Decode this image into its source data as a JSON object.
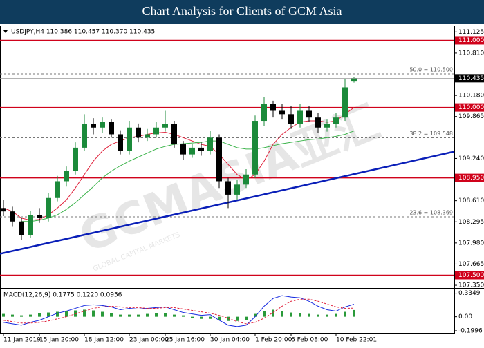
{
  "chart_data": {
    "type": "candlestick",
    "title": "Chart Analysis for Clients of GCM Asia",
    "header": "USDJPY,H4  110.386 110.457 110.370 110.435",
    "watermark": "GCMASIA亚汇",
    "watermark_sub": "GLOBAL CAPITAL MARKETS",
    "categories": [
      "11 Jan 2019",
      null,
      null,
      null,
      "15 Jan 20:00",
      null,
      null,
      null,
      null,
      "18 Jan 12:00",
      null,
      null,
      null,
      null,
      "23 Jan 00:00",
      null,
      null,
      null,
      "25 Jan 16:00",
      null,
      null,
      null,
      null,
      "30 Jan 04:00",
      null,
      null,
      null,
      null,
      "1 Feb 20:00",
      null,
      null,
      null,
      "6 Feb 08:00",
      null,
      null,
      null,
      null,
      "10 Feb 22:01",
      null,
      null
    ],
    "ohlc": [
      [
        108.5,
        108.62,
        108.38,
        108.45
      ],
      [
        108.45,
        108.52,
        108.22,
        108.3
      ],
      [
        108.3,
        108.36,
        108.02,
        108.1
      ],
      [
        108.1,
        108.46,
        108.06,
        108.4
      ],
      [
        108.4,
        108.5,
        108.28,
        108.35
      ],
      [
        108.35,
        108.72,
        108.3,
        108.65
      ],
      [
        108.65,
        108.98,
        108.6,
        108.9
      ],
      [
        108.9,
        109.12,
        108.82,
        109.05
      ],
      [
        109.05,
        109.48,
        109.0,
        109.4
      ],
      [
        109.4,
        109.9,
        109.35,
        109.75
      ],
      [
        109.75,
        109.84,
        109.6,
        109.7
      ],
      [
        109.7,
        109.85,
        109.62,
        109.78
      ],
      [
        109.78,
        109.82,
        109.55,
        109.6
      ],
      [
        109.6,
        109.66,
        109.3,
        109.35
      ],
      [
        109.35,
        109.8,
        109.3,
        109.7
      ],
      [
        109.7,
        109.76,
        109.48,
        109.55
      ],
      [
        109.55,
        109.68,
        109.5,
        109.6
      ],
      [
        109.6,
        109.78,
        109.55,
        109.7
      ],
      [
        109.7,
        109.95,
        109.64,
        109.75
      ],
      [
        109.75,
        109.8,
        109.4,
        109.45
      ],
      [
        109.45,
        109.5,
        109.22,
        109.3
      ],
      [
        109.3,
        109.46,
        109.25,
        109.4
      ],
      [
        109.4,
        109.48,
        109.28,
        109.35
      ],
      [
        109.35,
        109.65,
        109.3,
        109.55
      ],
      [
        109.55,
        109.6,
        108.8,
        108.9
      ],
      [
        108.9,
        108.95,
        108.5,
        108.7
      ],
      [
        108.7,
        108.92,
        108.62,
        108.85
      ],
      [
        108.85,
        109.08,
        108.8,
        109.0
      ],
      [
        109.0,
        109.88,
        108.95,
        109.8
      ],
      [
        109.8,
        110.15,
        109.72,
        110.05
      ],
      [
        110.05,
        110.1,
        109.85,
        109.95
      ],
      [
        109.95,
        110.05,
        109.82,
        109.9
      ],
      [
        109.9,
        110.02,
        109.68,
        109.75
      ],
      [
        109.75,
        110.05,
        109.7,
        109.95
      ],
      [
        109.95,
        110.02,
        109.78,
        109.85
      ],
      [
        109.85,
        109.92,
        109.62,
        109.7
      ],
      [
        109.7,
        109.82,
        109.64,
        109.75
      ],
      [
        109.75,
        109.92,
        109.7,
        109.85
      ],
      [
        109.85,
        110.42,
        109.8,
        110.3
      ],
      [
        110.386,
        110.457,
        110.37,
        110.435
      ]
    ],
    "up_color": "#1b8a3a",
    "down_color": "#000000",
    "ma": [
      {
        "color": "#e0203a",
        "values": [
          108.5,
          108.45,
          108.35,
          108.32,
          108.33,
          108.4,
          108.5,
          108.62,
          108.8,
          109.0,
          109.2,
          109.35,
          109.45,
          109.5,
          109.55,
          109.57,
          109.6,
          109.62,
          109.63,
          109.6,
          109.55,
          109.5,
          109.45,
          109.42,
          109.3,
          109.15,
          109.0,
          108.92,
          109.0,
          109.2,
          109.45,
          109.6,
          109.7,
          109.78,
          109.8,
          109.8,
          109.78,
          109.8,
          109.9,
          110.0
        ]
      },
      {
        "color": "#3cb44b",
        "values": [
          null,
          null,
          108.3,
          108.3,
          108.32,
          108.35,
          108.4,
          108.48,
          108.58,
          108.7,
          108.82,
          108.95,
          109.05,
          109.13,
          109.2,
          109.26,
          109.32,
          109.38,
          109.42,
          109.45,
          109.46,
          109.47,
          109.48,
          109.5,
          109.5,
          109.45,
          109.4,
          109.38,
          109.38,
          109.4,
          109.43,
          109.46,
          109.48,
          109.5,
          109.52,
          109.53,
          109.55,
          109.57,
          109.6,
          109.65
        ]
      }
    ],
    "trendline": {
      "color": "#0a1fb8",
      "values": [
        107.83,
        109.006
      ]
    },
    "ylim": [
      107.33,
      111.19
    ],
    "yticks": [
      111.125,
      {
        "value": 110.81,
        "label": "110.810"
      },
      {
        "value": 110.18,
        "label": "110.180"
      },
      109.865,
      {
        "value": 109.24,
        "label": "109.240"
      },
      {
        "value": 108.61,
        "label": "108.610"
      },
      108.295,
      {
        "value": 107.98,
        "label": "107.980"
      },
      107.665,
      {
        "value": 107.35,
        "label": "107.350"
      }
    ],
    "levels": [
      {
        "value": 111.0,
        "label": "111.000"
      },
      {
        "value": 110.0,
        "label": "110.000"
      },
      {
        "value": 108.95,
        "label": "108.950"
      },
      {
        "value": 107.5,
        "label": "107.500"
      }
    ],
    "level_color": "#d0021b",
    "fibo": [
      {
        "value": 110.5,
        "label": "50.0 = 110.500"
      },
      {
        "value": 109.548,
        "label": "38.2 = 109.548"
      },
      {
        "value": 108.369,
        "label": "23.6 = 108.369"
      }
    ],
    "current": {
      "value": 110.435,
      "label": "110.435"
    },
    "macd": {
      "header": "MACD(12,26,9) 0.1775 0.1220 0.0956",
      "ylim": [
        -0.2,
        0.38
      ],
      "yticks": [
        0.3349,
        {
          "value": 0,
          "label": "0.00"
        },
        -0.1996
      ],
      "series": [
        {
          "color": "#1428e0",
          "values": [
            -0.08,
            -0.1,
            -0.12,
            -0.08,
            -0.05,
            0.0,
            0.05,
            0.08,
            0.12,
            0.16,
            0.17,
            0.16,
            0.14,
            0.1,
            0.12,
            0.11,
            0.12,
            0.13,
            0.14,
            0.1,
            0.06,
            0.04,
            0.02,
            0.03,
            -0.05,
            -0.12,
            -0.14,
            -0.12,
            0.0,
            0.15,
            0.26,
            0.3,
            0.28,
            0.27,
            0.22,
            0.15,
            0.1,
            0.08,
            0.14,
            0.1775
          ]
        },
        {
          "color": "#e0203a",
          "values": [
            -0.05,
            -0.07,
            -0.09,
            -0.09,
            -0.08,
            -0.06,
            -0.03,
            0.0,
            0.04,
            0.08,
            0.12,
            0.14,
            0.15,
            0.14,
            0.13,
            0.13,
            0.12,
            0.12,
            0.13,
            0.13,
            0.11,
            0.09,
            0.07,
            0.05,
            0.02,
            -0.02,
            -0.07,
            -0.1,
            -0.08,
            -0.02,
            0.06,
            0.15,
            0.22,
            0.25,
            0.25,
            0.22,
            0.18,
            0.14,
            0.12,
            0.122
          ]
        }
      ],
      "histogram": {
        "color": "#2a9a3a",
        "values": [
          0.04,
          0.03,
          0.02,
          0.03,
          0.05,
          0.06,
          0.07,
          0.08,
          0.09,
          0.1,
          0.09,
          0.07,
          0.05,
          0.03,
          0.03,
          0.03,
          0.04,
          0.05,
          0.05,
          0.03,
          0.02,
          -0.02,
          -0.03,
          -0.03,
          -0.05,
          -0.06,
          -0.06,
          -0.05,
          0.04,
          0.08,
          0.1,
          0.08,
          0.06,
          0.05,
          0.04,
          0.03,
          0.03,
          0.04,
          0.07,
          0.0956
        ]
      }
    }
  }
}
